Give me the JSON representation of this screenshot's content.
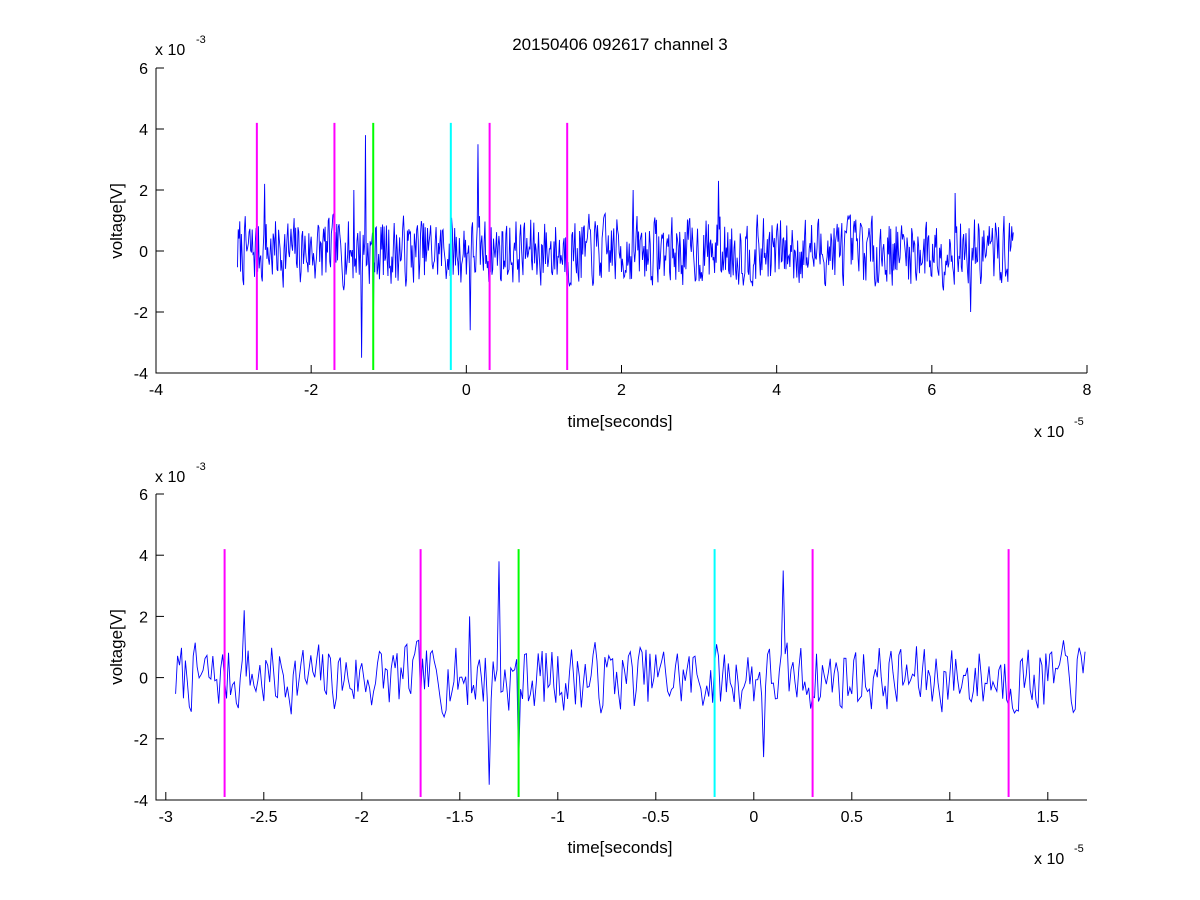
{
  "chart_data": [
    {
      "type": "line",
      "title": "20150406 092617 channel 3",
      "xlabel": "time[seconds]",
      "ylabel": "voltage[V]",
      "x_exponent_label": "x 10",
      "x_exponent": "-5",
      "y_exponent_label": "x 10",
      "y_exponent": "-3",
      "xlim": [
        -4,
        8
      ],
      "ylim": [
        -4,
        6
      ],
      "xticks": [
        -4,
        -2,
        0,
        2,
        4,
        6,
        8
      ],
      "xtick_labels": [
        "-4",
        "-2",
        "0",
        "2",
        "4",
        "6",
        "8"
      ],
      "yticks": [
        -4,
        -2,
        0,
        2,
        4,
        6
      ],
      "ytick_labels": [
        "-4",
        "-2",
        "0",
        "2",
        "4",
        "6"
      ],
      "grid": false,
      "signal": {
        "color": "#0000ff",
        "x_range": [
          -2.95,
          7.05
        ],
        "seed": 7,
        "noise_amplitude": 0.75,
        "spikes": [
          {
            "x": -2.6,
            "y": 2.2
          },
          {
            "x": -1.45,
            "y": 2.0
          },
          {
            "x": -1.3,
            "y": 3.8
          },
          {
            "x": -1.35,
            "y": -3.5
          },
          {
            "x": -1.2,
            "y": -2.9
          },
          {
            "x": 0.05,
            "y": -2.6
          },
          {
            "x": 0.15,
            "y": 3.5
          },
          {
            "x": 2.15,
            "y": 2.0
          },
          {
            "x": 3.25,
            "y": 2.3
          },
          {
            "x": 6.3,
            "y": 1.9
          },
          {
            "x": 6.5,
            "y": -2.0
          }
        ]
      },
      "markers": [
        {
          "x": -2.7,
          "color": "#ff00ff"
        },
        {
          "x": -1.7,
          "color": "#ff00ff"
        },
        {
          "x": -1.2,
          "color": "#00ff00"
        },
        {
          "x": -0.2,
          "color": "#00ffff"
        },
        {
          "x": 0.3,
          "color": "#ff00ff"
        },
        {
          "x": 1.3,
          "color": "#ff00ff"
        }
      ],
      "marker_range": [
        -3.9,
        4.2
      ]
    },
    {
      "type": "line",
      "title": "",
      "xlabel": "time[seconds]",
      "ylabel": "voltage[V]",
      "x_exponent_label": "x 10",
      "x_exponent": "-5",
      "y_exponent_label": "x 10",
      "y_exponent": "-3",
      "xlim": [
        -3.05,
        1.7
      ],
      "ylim": [
        -4,
        6
      ],
      "xticks": [
        -3,
        -2.5,
        -2,
        -1.5,
        -1,
        -0.5,
        0,
        0.5,
        1,
        1.5
      ],
      "xtick_labels": [
        "-3",
        "-2.5",
        "-2",
        "-1.5",
        "-1",
        "-0.5",
        "0",
        "0.5",
        "1",
        "1.5"
      ],
      "yticks": [
        -4,
        -2,
        0,
        2,
        4,
        6
      ],
      "ytick_labels": [
        "-4",
        "-2",
        "0",
        "2",
        "4",
        "6"
      ],
      "grid": false,
      "signal": {
        "color": "#0000ff",
        "x_range": [
          -2.95,
          1.7
        ],
        "seed": 7,
        "noise_amplitude": 0.75,
        "spikes": [
          {
            "x": -2.6,
            "y": 2.2
          },
          {
            "x": -1.45,
            "y": 2.0
          },
          {
            "x": -1.3,
            "y": 3.8
          },
          {
            "x": -1.35,
            "y": -3.5
          },
          {
            "x": -1.2,
            "y": -2.9
          },
          {
            "x": 0.05,
            "y": -2.6
          },
          {
            "x": 0.15,
            "y": 3.5
          }
        ]
      },
      "markers": [
        {
          "x": -2.7,
          "color": "#ff00ff"
        },
        {
          "x": -1.7,
          "color": "#ff00ff"
        },
        {
          "x": -1.2,
          "color": "#00ff00"
        },
        {
          "x": -0.2,
          "color": "#00ffff"
        },
        {
          "x": 0.3,
          "color": "#ff00ff"
        },
        {
          "x": 1.3,
          "color": "#ff00ff"
        }
      ],
      "marker_range": [
        -3.9,
        4.2
      ]
    }
  ]
}
